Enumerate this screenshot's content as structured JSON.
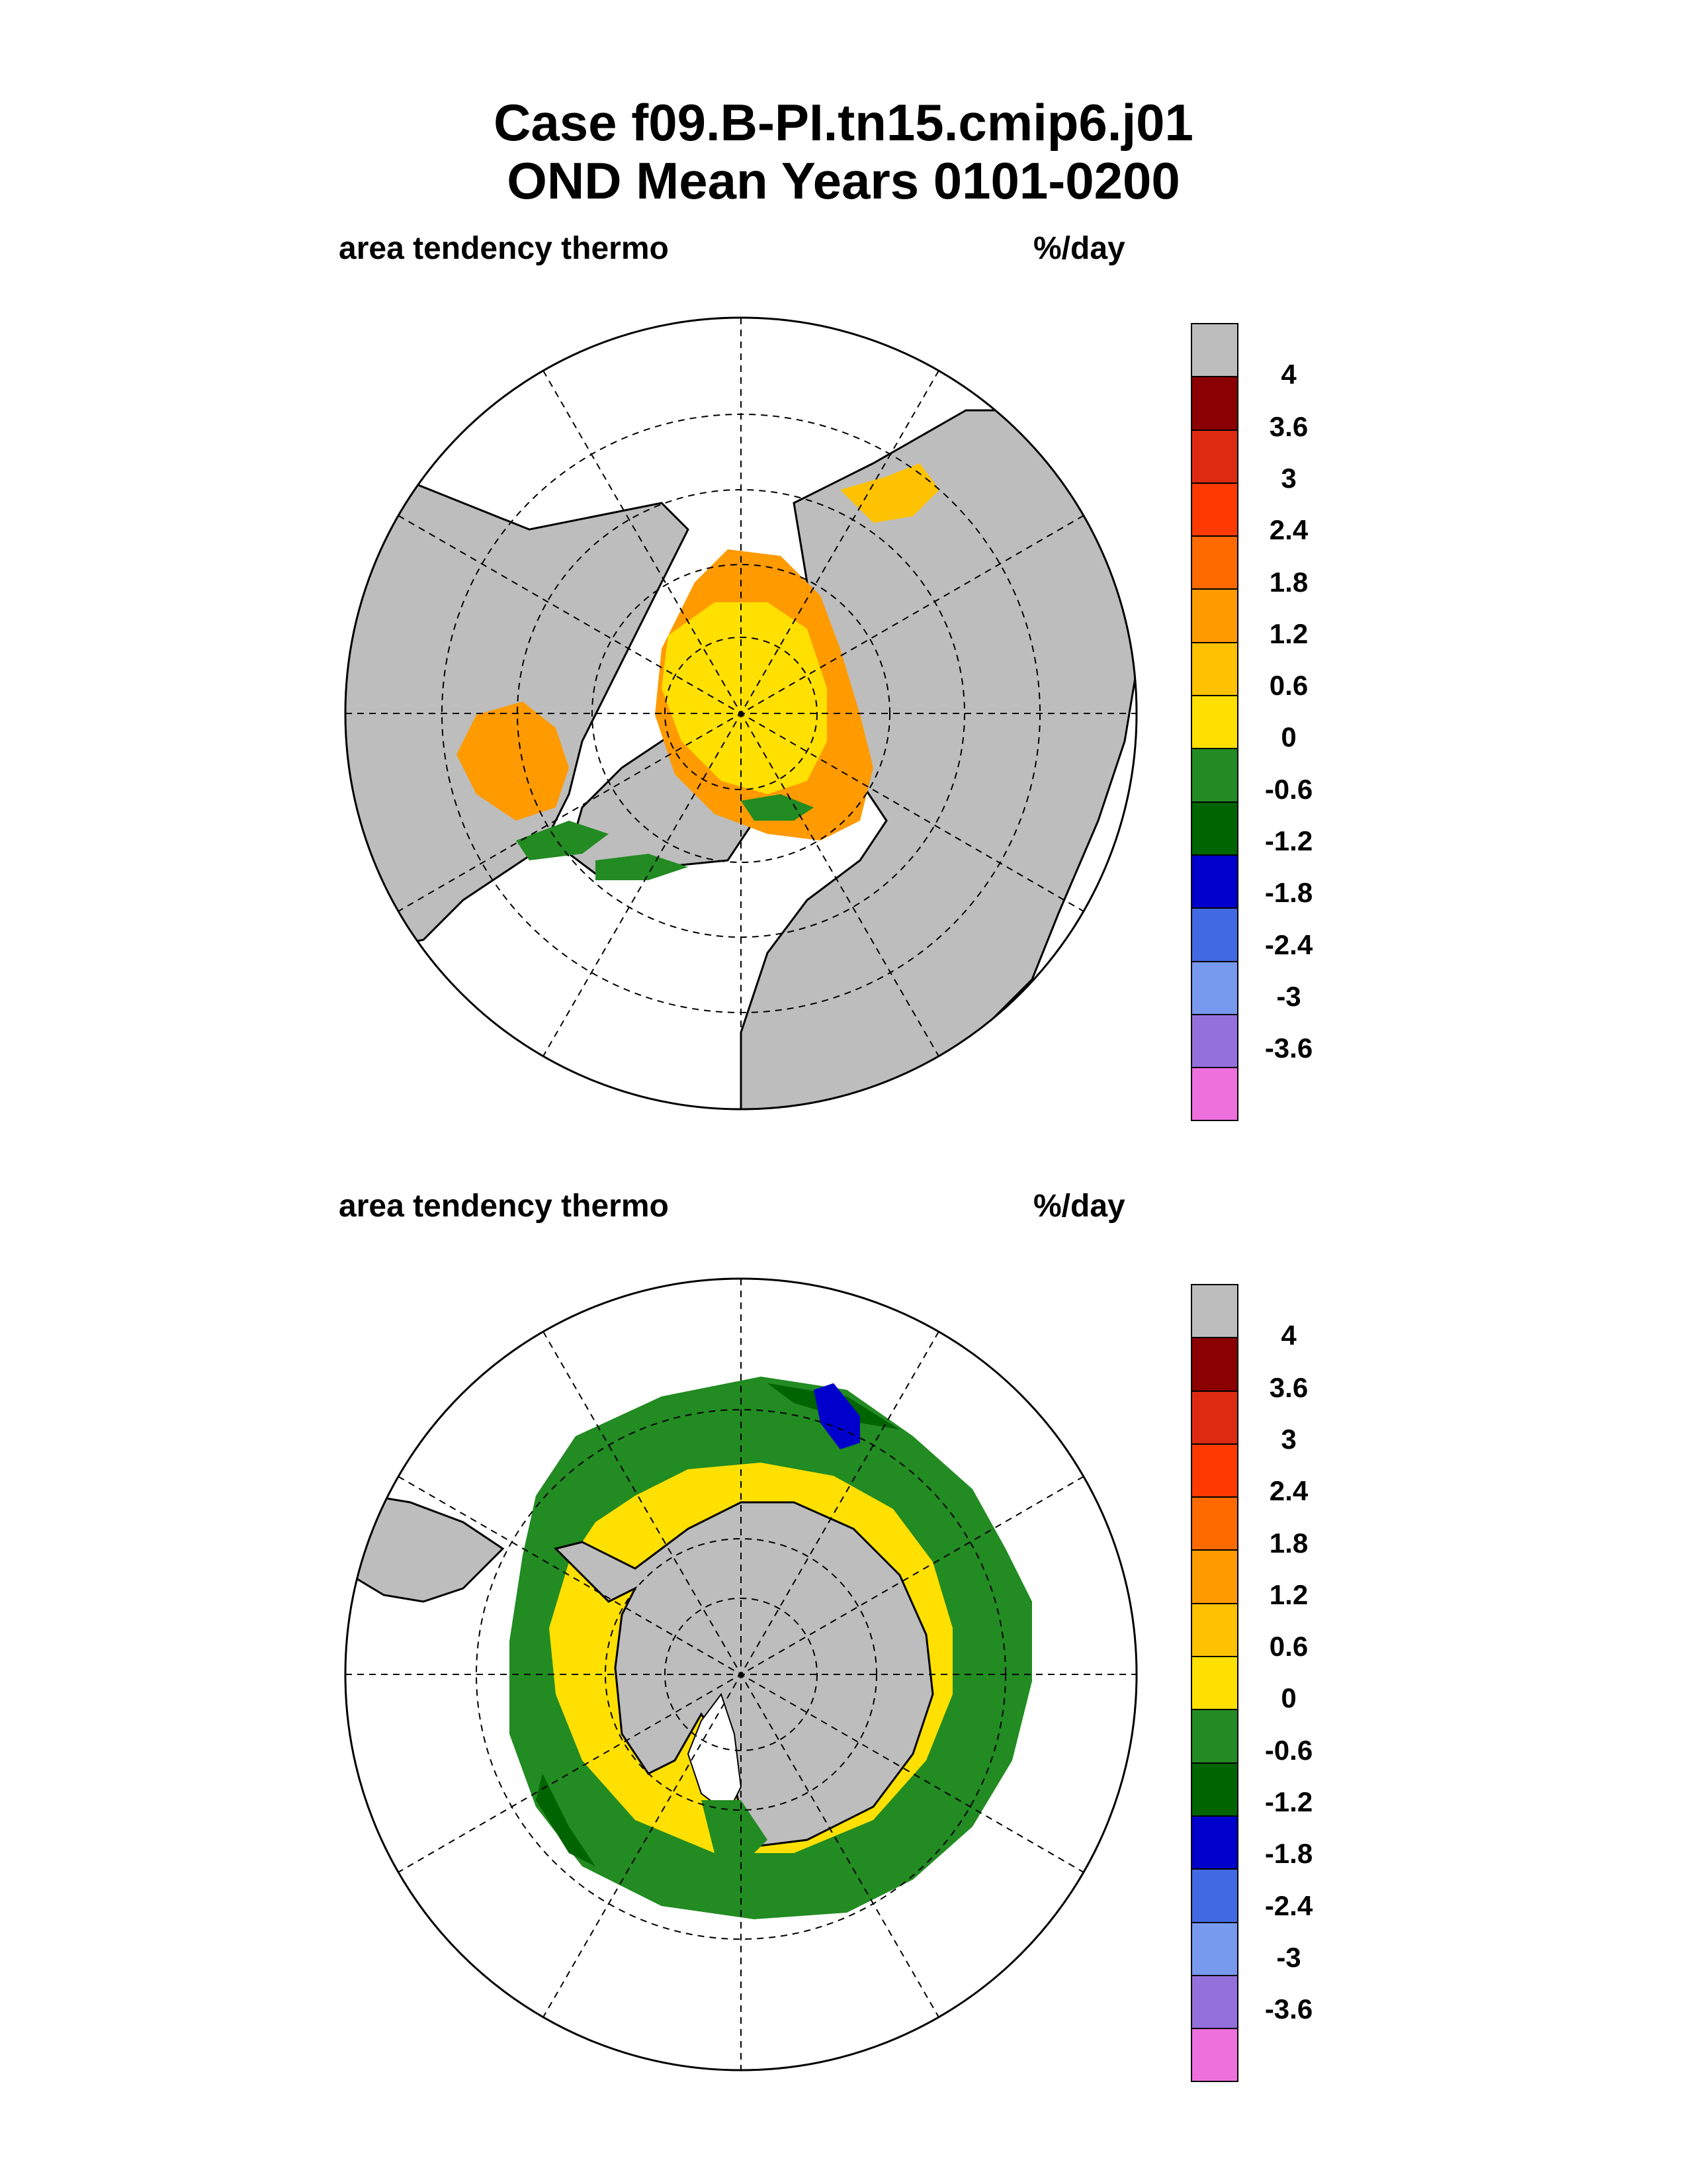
{
  "title": {
    "line1": "Case f09.B-PI.tn15.cmip6.j01",
    "line2": "OND Mean   Years 0101-0200"
  },
  "panels": [
    {
      "variable": "area tendency thermo",
      "units": "%/day",
      "hemisphere": "north"
    },
    {
      "variable": "area tendency thermo",
      "units": "%/day",
      "hemisphere": "south"
    }
  ],
  "colorbar": {
    "labels": [
      "4",
      "3.6",
      "3",
      "2.4",
      "1.8",
      "1.2",
      "0.6",
      "0",
      "-0.6",
      "-1.2",
      "-1.8",
      "-2.4",
      "-3",
      "-3.6"
    ],
    "colors": [
      "#bdbdbd",
      "#8b0000",
      "#dd2a10",
      "#ff3a00",
      "#ff6a00",
      "#ff9a00",
      "#ffc200",
      "#ffe000",
      "#228b22",
      "#006400",
      "#0000cd",
      "#4169e1",
      "#7799ee",
      "#9370db",
      "#ee70dd"
    ]
  }
}
